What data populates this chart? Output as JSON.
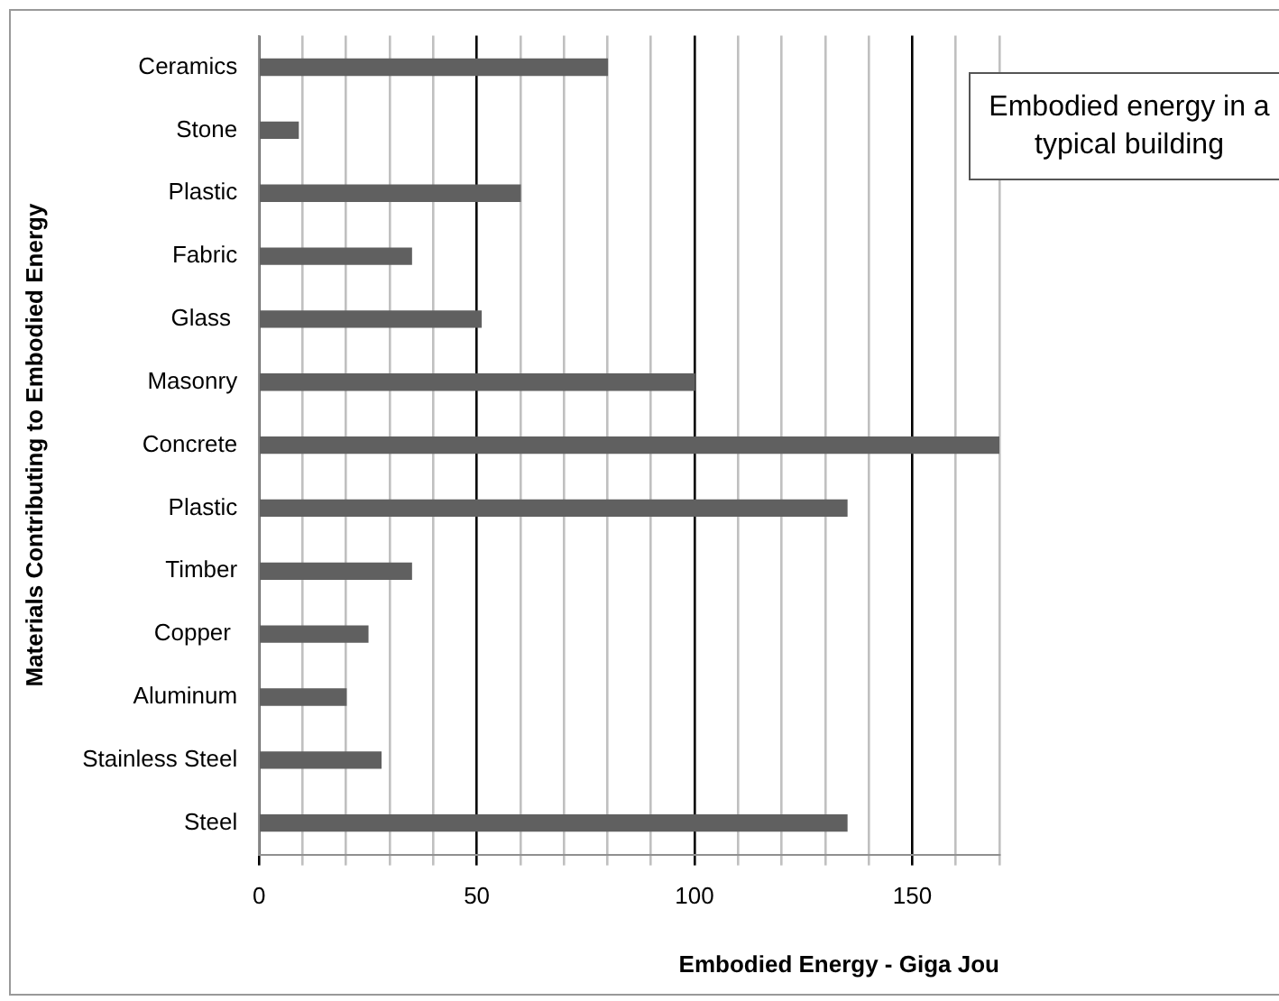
{
  "chart_data": {
    "type": "bar",
    "orientation": "horizontal",
    "ylabel": "Materials Contributing to Embodied Energy",
    "xlabel": "Embodied Energy - Giga Jou",
    "categories": [
      "Ceramics",
      "Stone",
      "Plastic",
      "Fabric",
      "Glass ",
      "Masonry",
      "Concrete",
      "Plastic",
      "Timber",
      "Copper ",
      "Aluminum",
      "Stainless Steel",
      "Steel"
    ],
    "values": [
      80,
      9,
      60,
      35,
      51,
      100,
      170,
      135,
      35,
      25,
      20,
      28,
      135
    ],
    "color": "#606060",
    "xlim": [
      0,
      170
    ],
    "xticks": [
      0,
      {
        "value": 10,
        "label": null
      },
      {
        "value": 20,
        "label": null
      },
      {
        "value": 30,
        "label": null
      },
      {
        "value": 40,
        "label": null
      },
      50,
      {
        "value": 60,
        "label": null
      },
      {
        "value": 70,
        "label": null
      },
      {
        "value": 80,
        "label": null
      },
      {
        "value": 90,
        "label": null
      },
      100,
      {
        "value": 110,
        "label": null
      },
      {
        "value": 120,
        "label": null
      },
      {
        "value": 130,
        "label": null
      },
      {
        "value": 140,
        "label": null
      },
      150,
      {
        "value": 160,
        "label": null
      },
      {
        "value": 170,
        "label": null
      }
    ],
    "grid": "x",
    "annotations": [
      "Embodied energy in a typical building"
    ]
  }
}
